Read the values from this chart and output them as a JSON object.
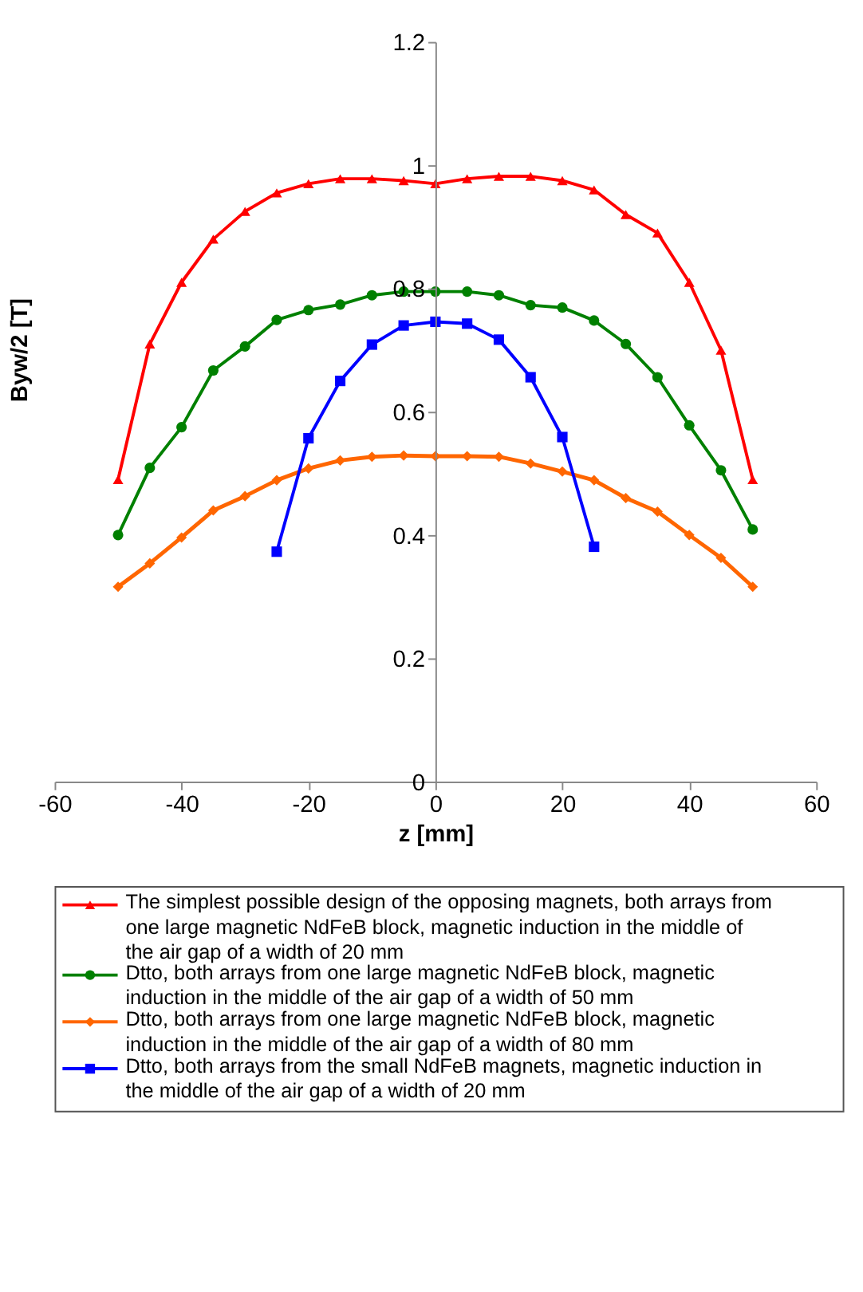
{
  "chart_data": {
    "type": "line",
    "xlabel": "z [mm]",
    "ylabel": "Byw/2 [T]",
    "x": [
      -50,
      -45,
      -40,
      -35,
      -30,
      -25,
      -20,
      -15,
      -10,
      -5,
      0,
      5,
      10,
      15,
      20,
      25,
      30,
      35,
      40,
      45,
      50
    ],
    "xlim": [
      -60,
      60
    ],
    "xticks": [
      -60,
      -40,
      -20,
      0,
      20,
      40,
      60
    ],
    "ylim": [
      0,
      1.2
    ],
    "yticks": [
      0,
      0.2,
      0.4,
      0.6,
      0.8,
      1,
      1.2
    ],
    "grid": false,
    "legend": "bottom",
    "line_style": "solid",
    "series": [
      {
        "name": "The simplest possible design of the opposing magnets, both arrays from one large magnetic NdFeB block, magnetic induction in the middle of the air gap of a width of 20 mm",
        "color": "#ff0000",
        "marker": "triangle",
        "values": [
          0.49,
          0.71,
          0.81,
          0.88,
          0.925,
          0.955,
          0.97,
          0.978,
          0.978,
          0.975,
          0.97,
          0.978,
          0.982,
          0.982,
          0.975,
          0.96,
          0.92,
          0.89,
          0.81,
          0.7,
          0.49
        ]
      },
      {
        "name": "Dtto, both arrays from one large magnetic NdFeB block, magnetic induction in the middle of the air gap of a width of 50 mm",
        "color": "#008000",
        "marker": "circle",
        "values": [
          0.4,
          0.509,
          0.575,
          0.667,
          0.706,
          0.749,
          0.765,
          0.774,
          0.789,
          0.795,
          0.795,
          0.795,
          0.789,
          0.773,
          0.769,
          0.748,
          0.71,
          0.656,
          0.578,
          0.505,
          0.409
        ]
      },
      {
        "name": "Dtto, both arrays from one large magnetic NdFeB block, magnetic induction in the middle of the air gap of a width of 80 mm",
        "color": "#ff6600",
        "marker": "diamond",
        "values": [
          0.316,
          0.354,
          0.396,
          0.44,
          0.463,
          0.489,
          0.508,
          0.521,
          0.527,
          0.529,
          0.528,
          0.528,
          0.527,
          0.516,
          0.503,
          0.489,
          0.46,
          0.438,
          0.4,
          0.363,
          0.316
        ]
      },
      {
        "name": "Dtto, both arrays from the small NdFeB magnets, magnetic induction in the middle of the air gap of a width of 20 mm",
        "color": "#0000ff",
        "marker": "square",
        "x": [
          -25,
          -20,
          -15,
          -10,
          -5,
          0,
          5,
          10,
          15,
          20,
          25
        ],
        "values": [
          0.373,
          0.557,
          0.65,
          0.709,
          0.74,
          0.746,
          0.743,
          0.717,
          0.656,
          0.559,
          0.381
        ]
      }
    ]
  }
}
